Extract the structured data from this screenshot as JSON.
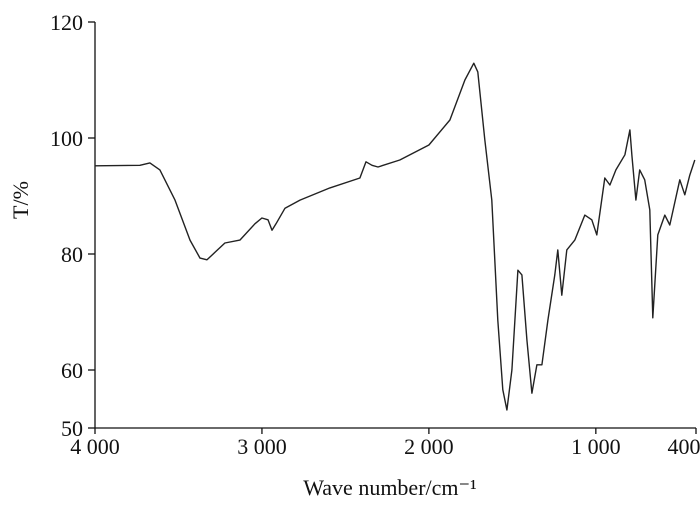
{
  "chart_data": {
    "type": "line",
    "xlabel": "Wave number/cm⁻¹",
    "ylabel": "T/%",
    "xlim": [
      4000,
      400
    ],
    "ylim": [
      50,
      120
    ],
    "xticks": [
      {
        "value": 4000,
        "label": "4 000"
      },
      {
        "value": 3000,
        "label": "3 000"
      },
      {
        "value": 2000,
        "label": "2 000"
      },
      {
        "value": 1000,
        "label": "1 000"
      },
      400
    ],
    "yticks": [
      50,
      60,
      80,
      100,
      120
    ],
    "grid": false,
    "series": [
      {
        "color": "#222222",
        "x": [
          4000,
          3731,
          3671,
          3611,
          3521,
          3431,
          3371,
          3329,
          3281,
          3222,
          3132,
          3042,
          3000,
          2964,
          2940,
          2916,
          2862,
          2772,
          2593,
          2413,
          2377,
          2341,
          2305,
          2174,
          2000,
          1874,
          1784,
          1731,
          1707,
          1665,
          1623,
          1587,
          1557,
          1533,
          1503,
          1467,
          1443,
          1413,
          1383,
          1353,
          1323,
          1287,
          1246,
          1228,
          1204,
          1174,
          1126,
          1066,
          1024,
          994,
          946,
          916,
          880,
          826,
          796,
          784,
          760,
          737,
          707,
          677,
          659,
          629,
          587,
          557,
          497,
          467,
          437,
          407
        ],
        "values": [
          95.2,
          95.3,
          95.7,
          94.5,
          89.3,
          82.4,
          79.3,
          79.0,
          80.3,
          81.9,
          82.4,
          85.2,
          86.2,
          85.9,
          84.1,
          85.2,
          87.9,
          89.3,
          91.4,
          93.1,
          95.9,
          95.3,
          95.0,
          96.2,
          98.8,
          103.1,
          110.0,
          112.9,
          111.4,
          99.7,
          89.3,
          68.6,
          56.6,
          53.1,
          60.0,
          77.2,
          76.4,
          65.2,
          56.0,
          60.9,
          60.9,
          68.6,
          76.4,
          80.7,
          72.9,
          80.7,
          82.4,
          86.7,
          85.9,
          83.3,
          93.1,
          91.9,
          94.5,
          97.1,
          101.4,
          97.0,
          89.3,
          94.5,
          92.8,
          87.6,
          69.0,
          83.3,
          86.7,
          85.0,
          92.8,
          90.2,
          93.6,
          96.2
        ]
      }
    ]
  }
}
